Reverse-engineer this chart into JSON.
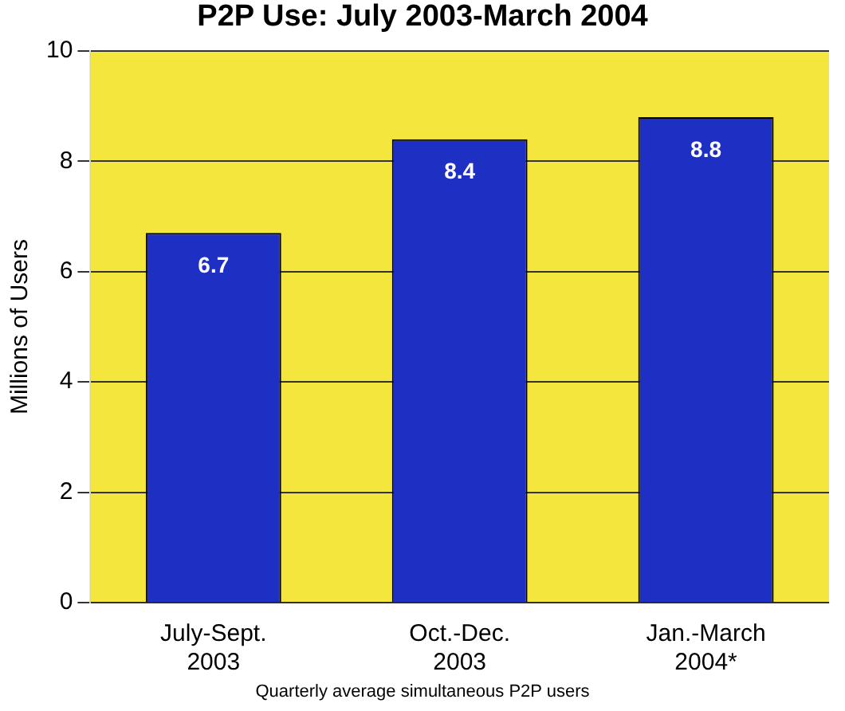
{
  "chart_data": {
    "type": "bar",
    "title": "P2P Use: July 2003-March 2004",
    "categories": [
      "July-Sept. 2003",
      "Oct.-Dec. 2003",
      "Jan.-March 2004*"
    ],
    "values": [
      6.7,
      8.4,
      8.8
    ],
    "color": "#1e2fc4",
    "ylabel": "Millions of Users",
    "ylim": [
      0,
      10
    ],
    "yticks": [
      0,
      2,
      4,
      6,
      8,
      10
    ],
    "grid": "y",
    "data_labels": true,
    "annotations": [
      "Quarterly average simultaneous P2P users"
    ]
  }
}
